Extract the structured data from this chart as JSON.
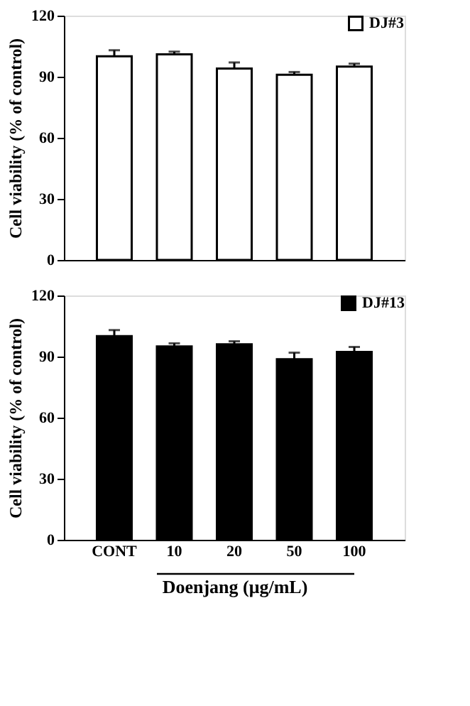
{
  "chart_data": [
    {
      "type": "bar",
      "ylabel": "Cell viability (% of control)",
      "categories": [
        null,
        null,
        null,
        null,
        null
      ],
      "ylim": [
        0,
        120
      ],
      "yticks": [
        0,
        30,
        60,
        90,
        120
      ],
      "grid": false,
      "legend": "top right",
      "tick_labels": "y",
      "series": [
        {
          "name": "DJ#3",
          "color": "#ffffff",
          "values": [
            100,
            101,
            94,
            91,
            95
          ],
          "errors": [
            3,
            1.3,
            3,
            1.3,
            1.4
          ]
        }
      ]
    },
    {
      "type": "bar",
      "ylabel": "Cell viability (% of control)",
      "xlabel": "Doenjang  (μg/mL)",
      "categories": [
        "CONT",
        "10",
        "20",
        "50",
        "100"
      ],
      "ylim": [
        0,
        120
      ],
      "yticks": [
        0,
        30,
        60,
        90,
        120
      ],
      "grid": false,
      "legend": "top right",
      "series": [
        {
          "name": "DJ#13",
          "color": "#000000",
          "values": [
            100,
            95,
            96,
            88.7,
            92.3
          ],
          "errors": [
            3,
            1.5,
            1.5,
            3.2,
            2.4
          ]
        }
      ]
    }
  ]
}
